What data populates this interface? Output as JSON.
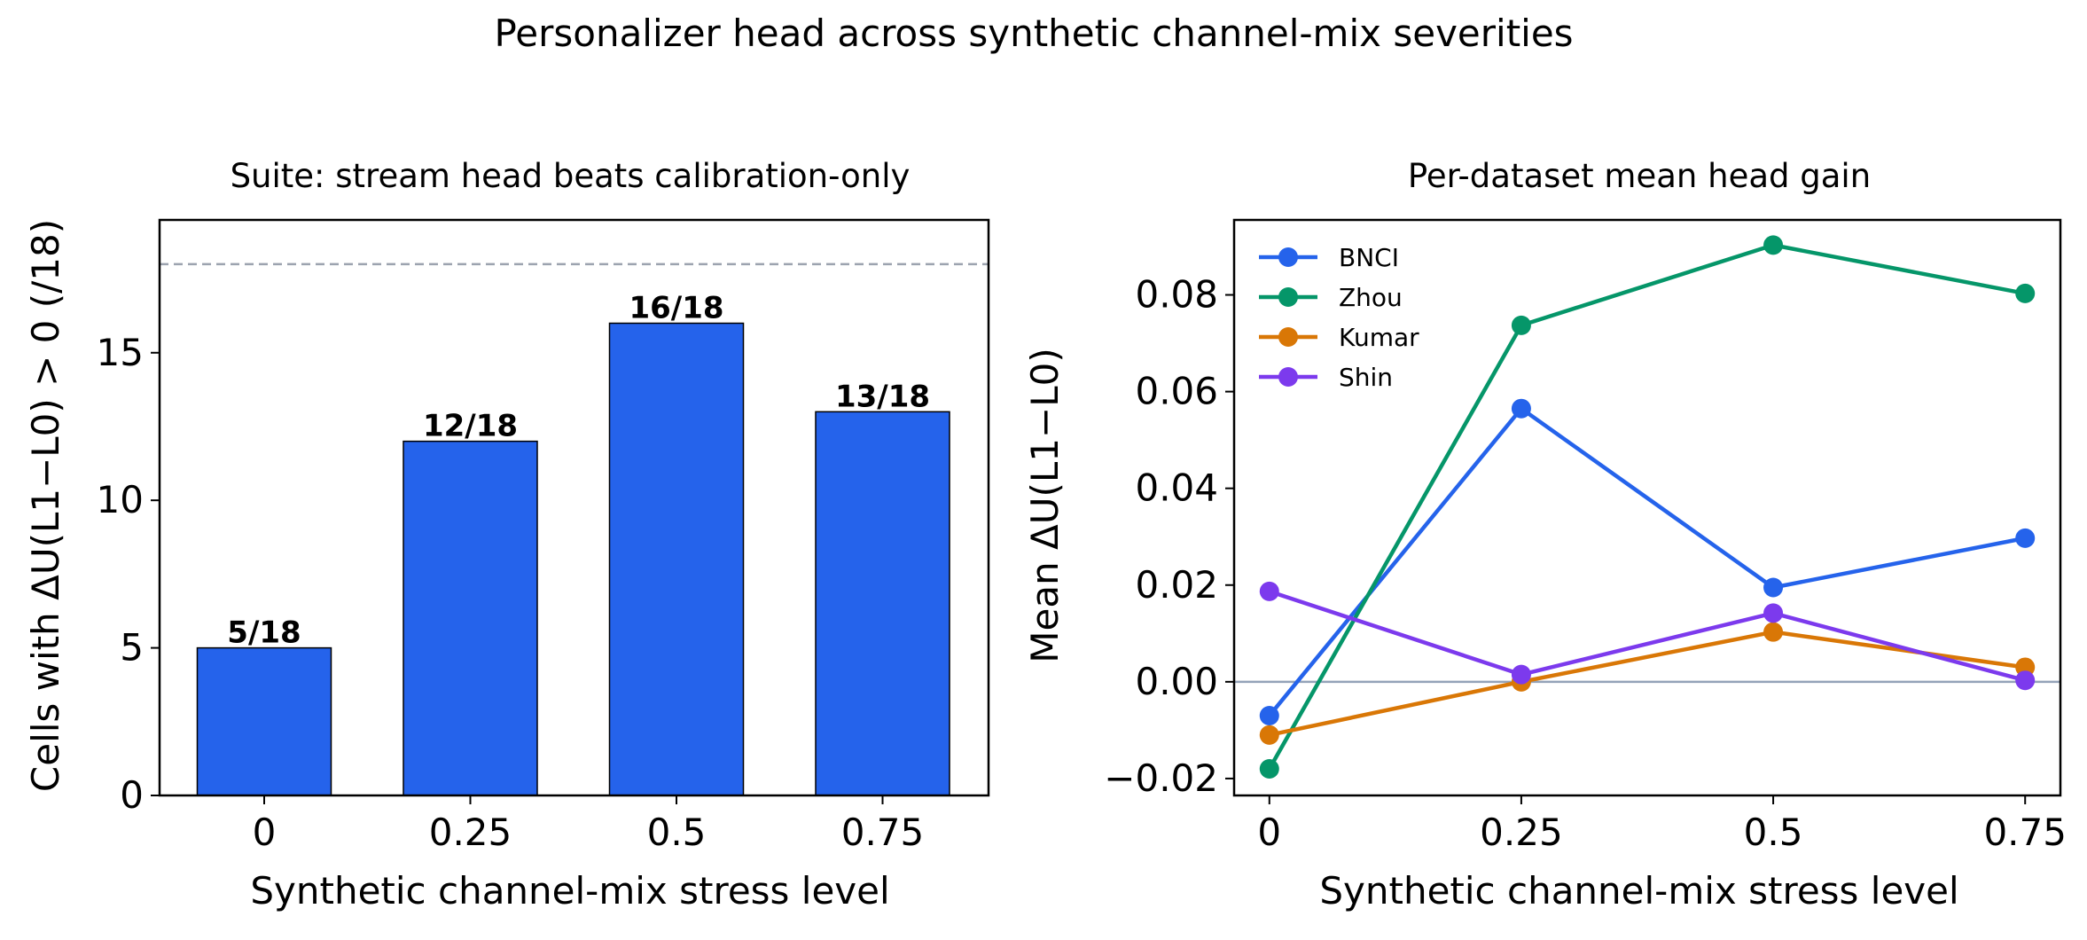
{
  "suptitle": "Personalizer head across synthetic channel-mix severities",
  "chart_data": [
    {
      "type": "bar",
      "title": "Suite: stream head beats calibration-only",
      "xlabel": "Synthetic channel-mix stress level",
      "ylabel": "Cells with ΔU(L1−L0) > 0 (/18)",
      "categories": [
        "0",
        "0.25",
        "0.5",
        "0.75"
      ],
      "values": [
        5,
        12,
        16,
        13
      ],
      "data_labels": [
        "5/18",
        "12/18",
        "16/18",
        "13/18"
      ],
      "ylim": [
        0,
        19.5
      ],
      "yticks": [
        0,
        5,
        10,
        15
      ],
      "ytick_labels": [
        "0",
        "5",
        "10",
        "15"
      ],
      "reference_line": 18,
      "bar_color": "#2563eb",
      "reference_color": "#9ca3af",
      "grid": false
    },
    {
      "type": "line",
      "title": "Per-dataset mean head gain",
      "xlabel": "Synthetic channel-mix stress level",
      "ylabel": "Mean ΔU(L1−L0)",
      "x": [
        0,
        0.25,
        0.5,
        0.75
      ],
      "xtick_labels": [
        "0",
        "0.25",
        "0.5",
        "0.75"
      ],
      "xlim": [
        -0.035,
        0.785
      ],
      "ylim": [
        -0.0235,
        0.0955
      ],
      "yticks": [
        -0.02,
        0.0,
        0.02,
        0.04,
        0.06,
        0.08
      ],
      "ytick_labels": [
        "−0.02",
        "0.00",
        "0.02",
        "0.04",
        "0.06",
        "0.08"
      ],
      "reference_line": 0,
      "reference_color": "#94a3b8",
      "legend_position": "top-left",
      "grid": false,
      "series": [
        {
          "name": "BNCI",
          "color": "#2563eb",
          "values": [
            -0.007,
            0.0565,
            0.0195,
            0.0297
          ]
        },
        {
          "name": "Zhou",
          "color": "#059669",
          "values": [
            -0.018,
            0.0737,
            0.0903,
            0.0803
          ]
        },
        {
          "name": "Kumar",
          "color": "#d97706",
          "values": [
            -0.011,
            0.0,
            0.0103,
            0.003
          ]
        },
        {
          "name": "Shin",
          "color": "#7c3aed",
          "values": [
            0.0187,
            0.0015,
            0.0142,
            0.0003
          ]
        }
      ]
    }
  ]
}
